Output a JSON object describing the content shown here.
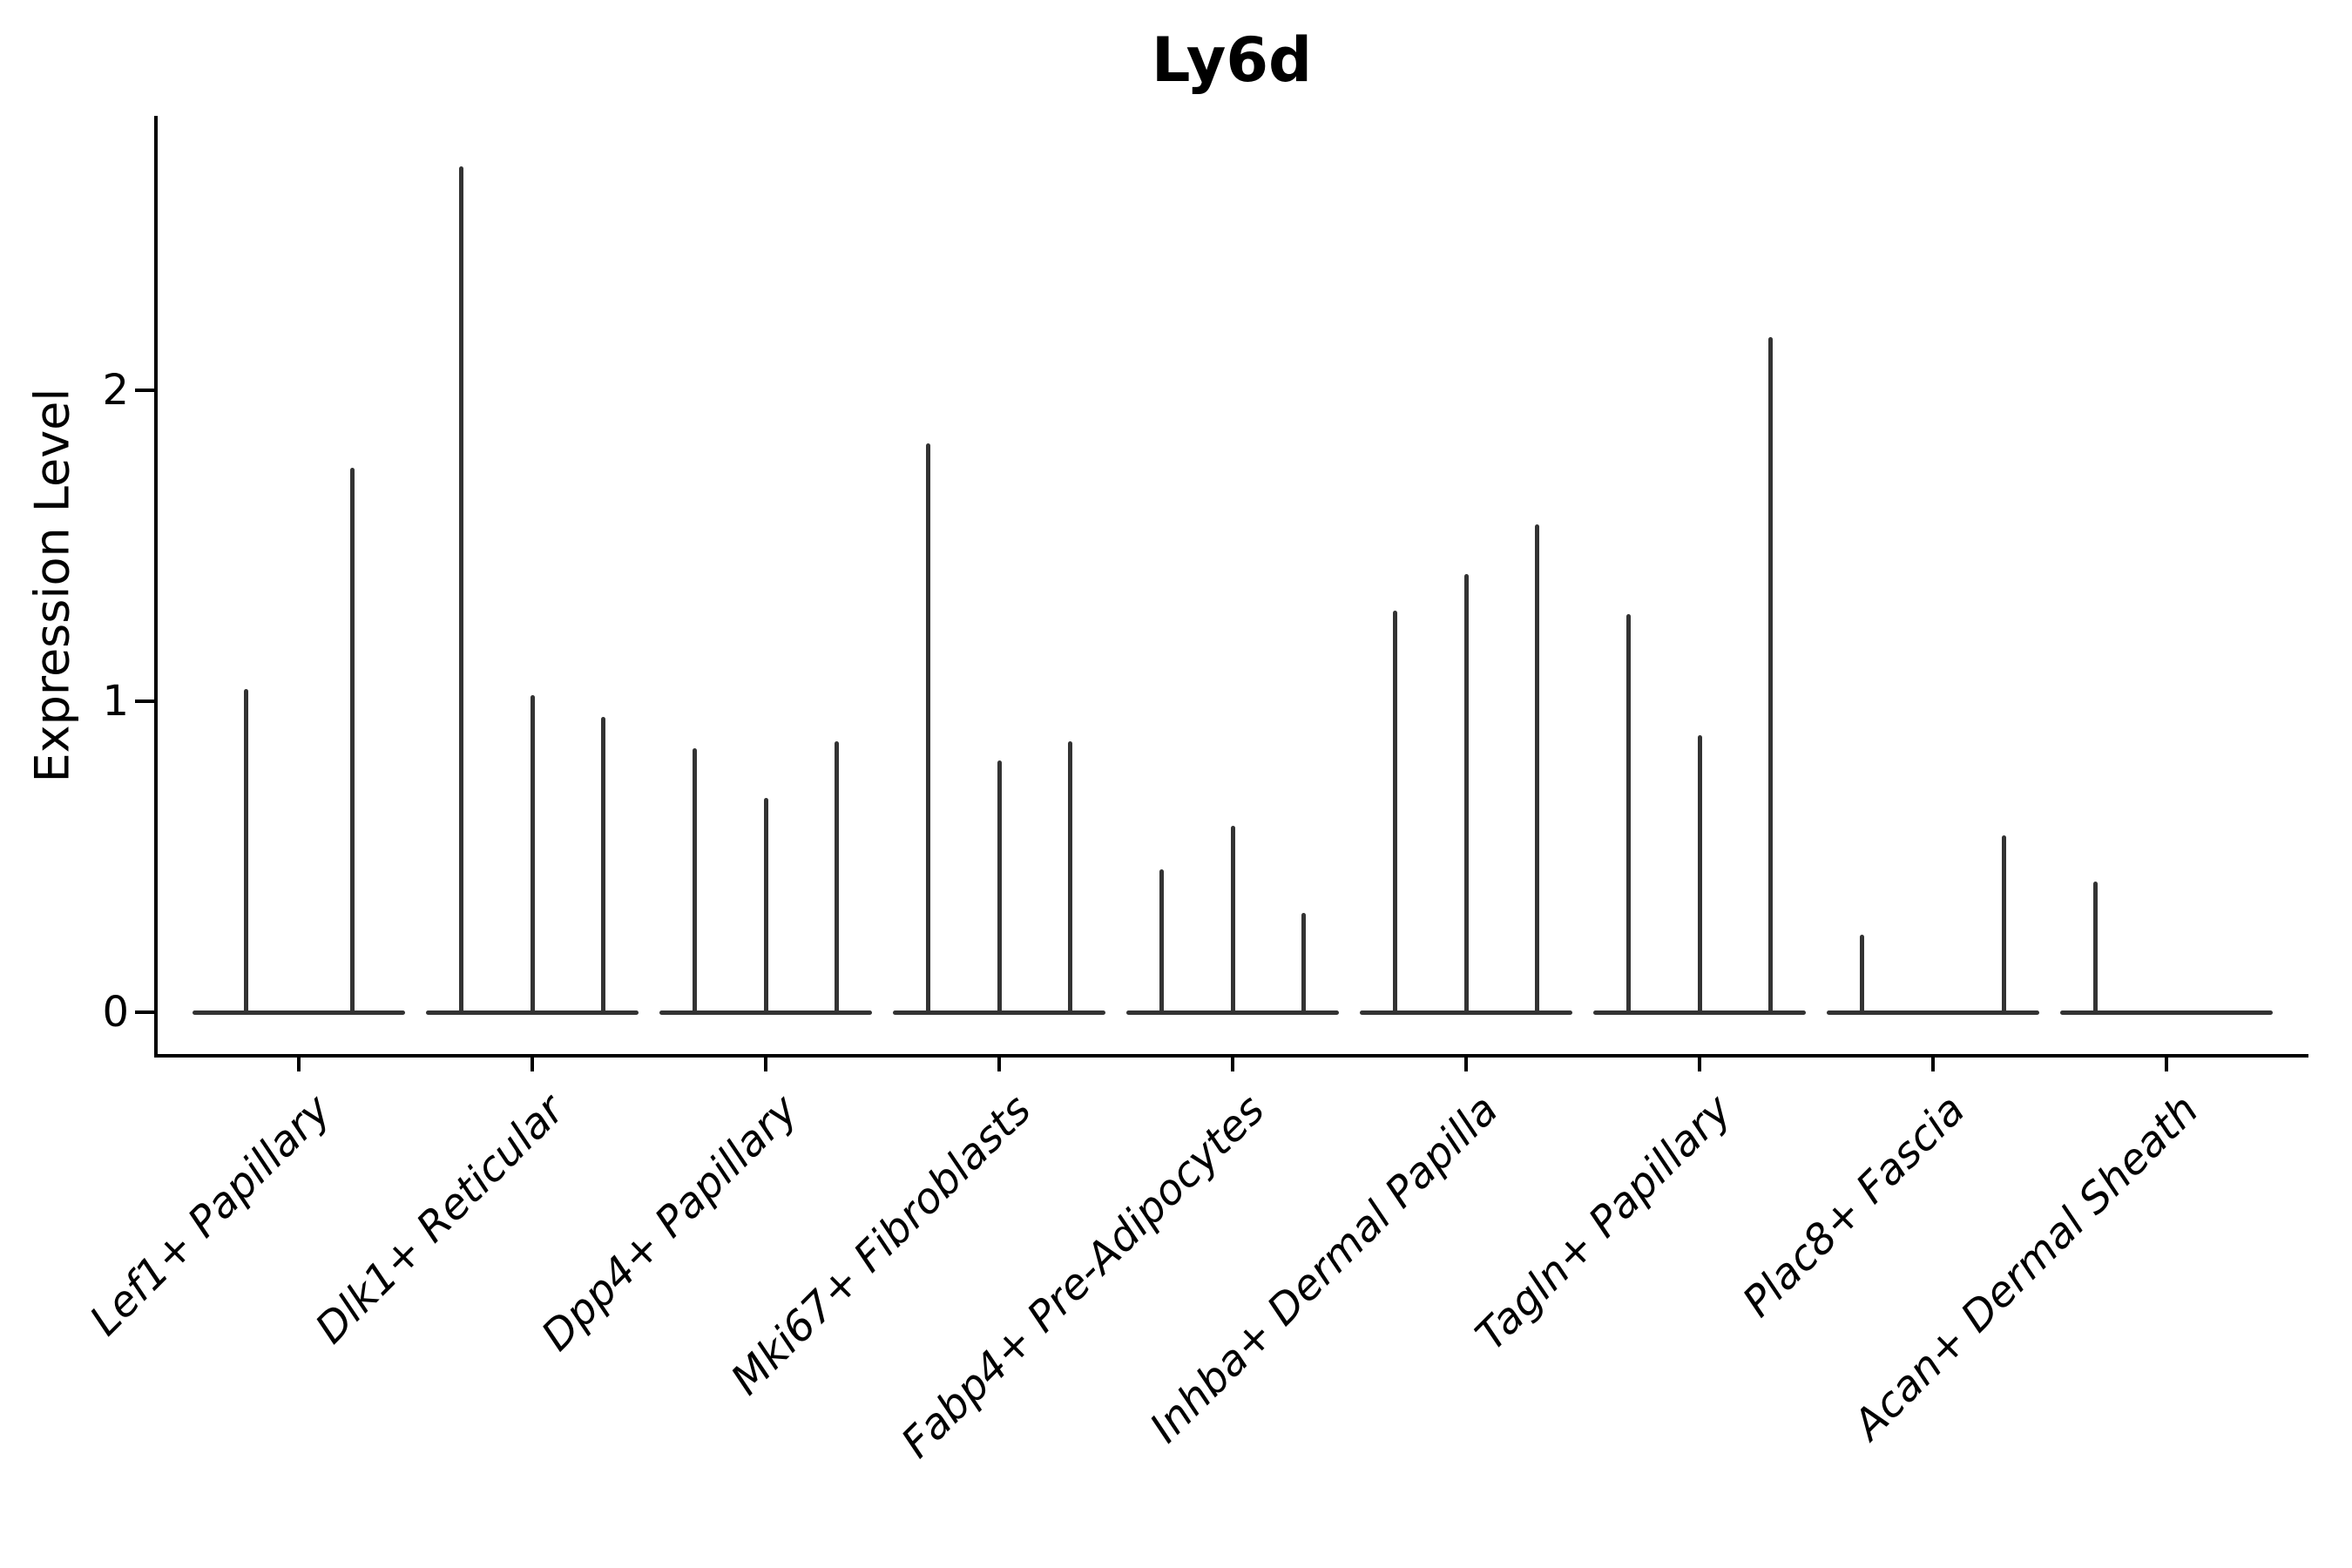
{
  "title": "Ly6d",
  "y_axis": {
    "label": "Expression Level",
    "tick_labels": [
      "0",
      "1",
      "2"
    ],
    "tick_values": [
      0,
      1,
      2
    ]
  },
  "chart_data": {
    "type": "violin",
    "title": "Ly6d",
    "xlabel": "",
    "ylabel": "Expression Level",
    "ylim": [
      0,
      2.9
    ],
    "yticks": [
      0,
      1,
      2
    ],
    "grid": false,
    "legend_position": "none",
    "categories": [
      "Lef1+ Papillary",
      "Dlk1+ Reticular",
      "Dpp4+ Papillary",
      "Mki67+ Fibroblasts",
      "Fabp4+ Pre-Adipocytes",
      "Inhba+ Dermal Papilla",
      "Tagln+ Papillary",
      "Plac8+ Fascia",
      "Acan+ Dermal Sheath"
    ],
    "groups": [
      {
        "category": "Lef1+ Papillary",
        "spike_max_values": [
          1.04,
          1.75
        ]
      },
      {
        "category": "Dlk1+ Reticular",
        "spike_max_values": [
          2.72,
          1.02,
          0.95
        ]
      },
      {
        "category": "Dpp4+ Papillary",
        "spike_max_values": [
          0.85,
          0.69,
          0.87
        ]
      },
      {
        "category": "Mki67+ Fibroblasts",
        "spike_max_values": [
          1.83,
          0.81,
          0.87
        ]
      },
      {
        "category": "Fabp4+ Pre-Adipocytes",
        "spike_max_values": [
          0.46,
          0.6,
          0.32
        ]
      },
      {
        "category": "Inhba+ Dermal Papilla",
        "spike_max_values": [
          1.29,
          1.41,
          1.57
        ]
      },
      {
        "category": "Tagln+ Papillary",
        "spike_max_values": [
          1.28,
          0.89,
          2.17
        ]
      },
      {
        "category": "Plac8+ Fascia",
        "spike_max_values": [
          0.25,
          0,
          0.57
        ]
      },
      {
        "category": "Acan+ Dermal Sheath",
        "spike_max_values": [
          0.42,
          0,
          0
        ]
      }
    ],
    "colors": {
      "violin": "#333333",
      "axis": "#000000",
      "background": "#ffffff"
    }
  }
}
